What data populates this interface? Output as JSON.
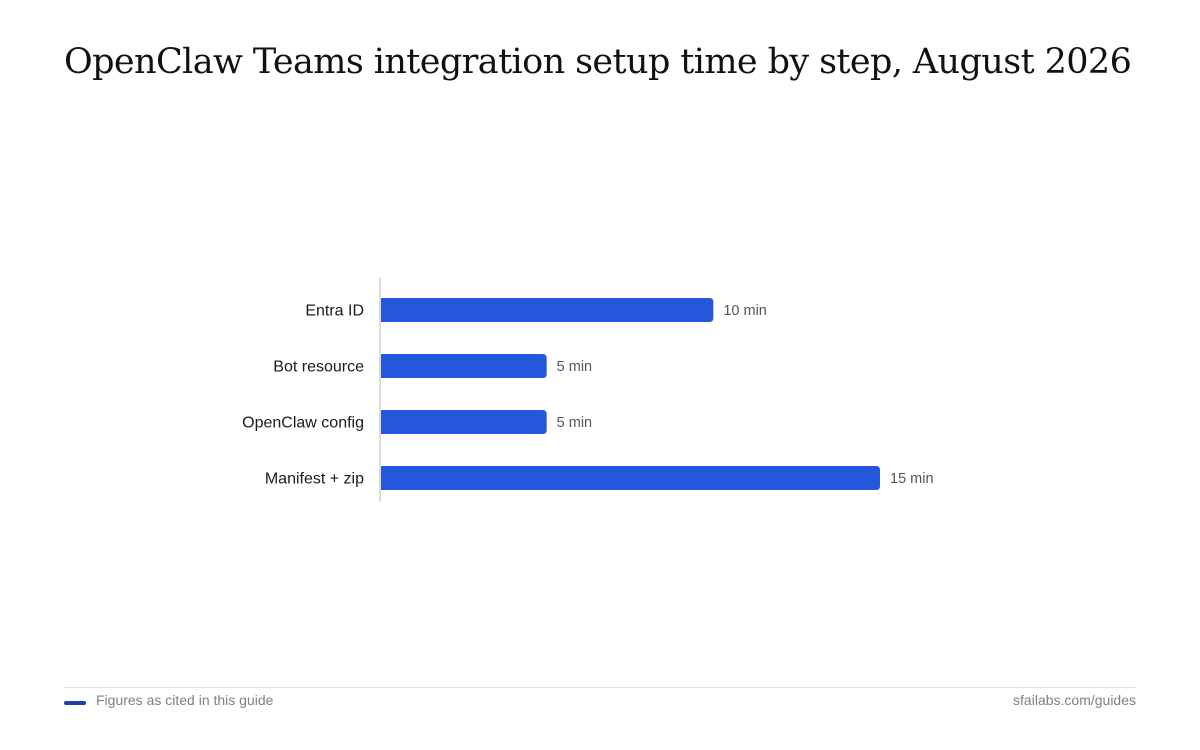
{
  "chart_data": {
    "type": "bar",
    "orientation": "horizontal",
    "title": "OpenClaw Teams integration setup time by step, August 2026",
    "categories": [
      "Entra ID",
      "Bot resource",
      "OpenClaw config",
      "Manifest + zip"
    ],
    "values": [
      10,
      5,
      5,
      15
    ],
    "data_labels": [
      "10 min",
      "5 min",
      "5 min",
      "15 min"
    ],
    "unit": "min",
    "xlim": [
      0,
      15
    ],
    "grid": false,
    "bar_color": "#2457da"
  },
  "footer": {
    "note": "Figures as cited in this guide",
    "source": "sfailabs.com/guides",
    "swatch_color": "#1f3fa8"
  }
}
